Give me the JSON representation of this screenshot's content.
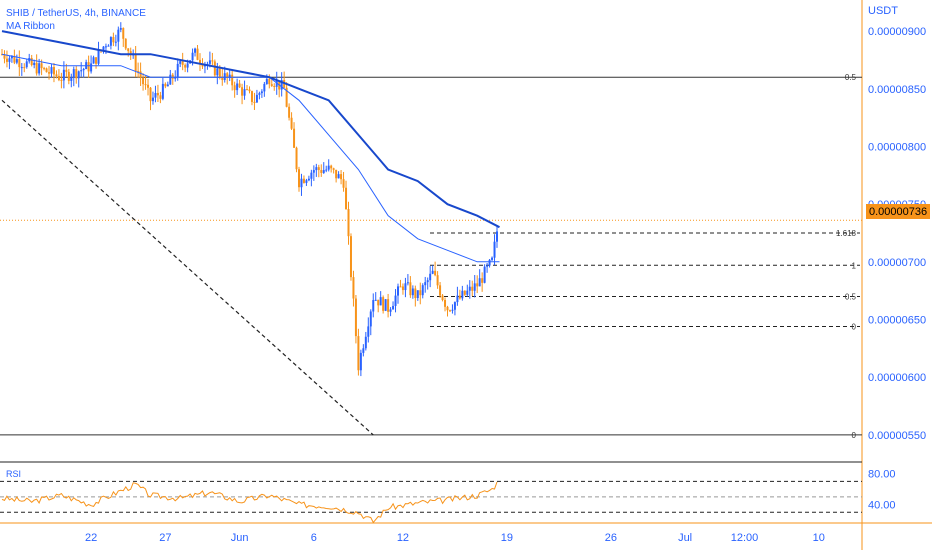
{
  "header": {
    "symbol_label": "SHIB / TetherUS, 4h, BINANCE",
    "indicator_label": "MA Ribbon"
  },
  "price_axis": {
    "currency": "USDT",
    "current_price_label": "0.00000736"
  },
  "rsi_panel": {
    "label": "RSI"
  },
  "colors": {
    "accent": "#f7931a",
    "text": "#2962ff",
    "up_candle": "#2962ff",
    "down_candle": "#f7931a",
    "ma_fast": "#2962ff",
    "ma_slow": "#1848cc"
  },
  "chart_data": [
    {
      "type": "candlestick",
      "title": "SHIB / TetherUS, 4h, BINANCE",
      "ylabel": "USDT",
      "ylim": [
        5.3e-06,
        9.2e-06
      ],
      "y_ticks": [
        "0.00000550",
        "0.00000600",
        "0.00000650",
        "0.00000700",
        "0.00000750",
        "0.00000800",
        "0.00000850",
        "0.00000900"
      ],
      "y_tick_values": [
        5.5e-06,
        6e-06,
        6.5e-06,
        7e-06,
        7.5e-06,
        8e-06,
        8.5e-06,
        9e-06
      ],
      "x_ticks": [
        "22",
        "27",
        "Jun",
        "6",
        "12",
        "19",
        "26",
        "Jul",
        "12:00",
        "10"
      ],
      "x_tick_day_index": [
        6,
        11,
        16,
        21,
        27,
        34,
        41,
        46,
        50,
        55
      ],
      "last_price": 7.36e-06,
      "grid": false,
      "price_path": [
        [
          0,
          8.8e-06
        ],
        [
          2,
          8.7e-06
        ],
        [
          4,
          8.6e-06
        ],
        [
          6,
          8.7e-06
        ],
        [
          7,
          8.9e-06
        ],
        [
          8,
          9e-06
        ],
        [
          9,
          8.7e-06
        ],
        [
          10,
          8.4e-06
        ],
        [
          11,
          8.5e-06
        ],
        [
          12,
          8.7e-06
        ],
        [
          13,
          8.8e-06
        ],
        [
          14,
          8.7e-06
        ],
        [
          15,
          8.6e-06
        ],
        [
          16,
          8.5e-06
        ],
        [
          17,
          8.4e-06
        ],
        [
          18,
          8.6e-06
        ],
        [
          19,
          8.5e-06
        ],
        [
          20,
          7.7e-06
        ],
        [
          21,
          7.8e-06
        ],
        [
          22,
          7.8e-06
        ],
        [
          23,
          7.7e-06
        ],
        [
          24,
          6.1e-06
        ],
        [
          25,
          6.7e-06
        ],
        [
          26,
          6.6e-06
        ],
        [
          27,
          6.8e-06
        ],
        [
          28,
          6.7e-06
        ],
        [
          29,
          6.9e-06
        ],
        [
          30,
          6.6e-06
        ],
        [
          31,
          6.7e-06
        ],
        [
          32,
          6.8e-06
        ],
        [
          33,
          7e-06
        ],
        [
          33.5,
          7.4e-06
        ]
      ],
      "ma_fast": [
        [
          0,
          8.8e-06
        ],
        [
          4,
          8.7e-06
        ],
        [
          8,
          8.7e-06
        ],
        [
          10,
          8.6e-06
        ],
        [
          14,
          8.6e-06
        ],
        [
          18,
          8.6e-06
        ],
        [
          20,
          8.4e-06
        ],
        [
          22,
          8.1e-06
        ],
        [
          24,
          7.8e-06
        ],
        [
          26,
          7.4e-06
        ],
        [
          28,
          7.2e-06
        ],
        [
          30,
          7.1e-06
        ],
        [
          32,
          7e-06
        ],
        [
          33.5,
          7e-06
        ]
      ],
      "ma_slow": [
        [
          0,
          9e-06
        ],
        [
          4,
          8.9e-06
        ],
        [
          8,
          8.8e-06
        ],
        [
          10,
          8.8e-06
        ],
        [
          14,
          8.7e-06
        ],
        [
          18,
          8.6e-06
        ],
        [
          20,
          8.5e-06
        ],
        [
          22,
          8.4e-06
        ],
        [
          24,
          8.1e-06
        ],
        [
          26,
          7.8e-06
        ],
        [
          28,
          7.7e-06
        ],
        [
          30,
          7.5e-06
        ],
        [
          32,
          7.4e-06
        ],
        [
          33.5,
          7.3e-06
        ]
      ],
      "trendline": {
        "from": [
          0,
          8.4e-06
        ],
        "to": [
          25,
          5.5e-06
        ]
      },
      "horizontal_levels": [
        {
          "label": "0.5",
          "value": 8.6e-06,
          "style": "solid"
        },
        {
          "label": "0",
          "value": 5.5e-06,
          "style": "solid"
        }
      ],
      "fib_levels": [
        {
          "label": "1.618",
          "value": 7.25e-06
        },
        {
          "label": "1",
          "value": 6.97e-06
        },
        {
          "label": "0.5",
          "value": 6.7e-06
        },
        {
          "label": "0",
          "value": 6.44e-06
        }
      ]
    },
    {
      "type": "line",
      "title": "RSI",
      "ylim": [
        20,
        90
      ],
      "y_ticks": [
        "40.00",
        "80.00"
      ],
      "y_tick_values": [
        40,
        80
      ],
      "bands": [
        70,
        50,
        30
      ],
      "values": [
        [
          0,
          48
        ],
        [
          2,
          44
        ],
        [
          4,
          52
        ],
        [
          6,
          40
        ],
        [
          8,
          58
        ],
        [
          9,
          66
        ],
        [
          10,
          52
        ],
        [
          12,
          48
        ],
        [
          14,
          56
        ],
        [
          16,
          44
        ],
        [
          18,
          52
        ],
        [
          20,
          40
        ],
        [
          22,
          38
        ],
        [
          24,
          30
        ],
        [
          25,
          18
        ],
        [
          26,
          36
        ],
        [
          28,
          42
        ],
        [
          30,
          46
        ],
        [
          32,
          52
        ],
        [
          33,
          60
        ],
        [
          33.5,
          72
        ]
      ]
    }
  ]
}
